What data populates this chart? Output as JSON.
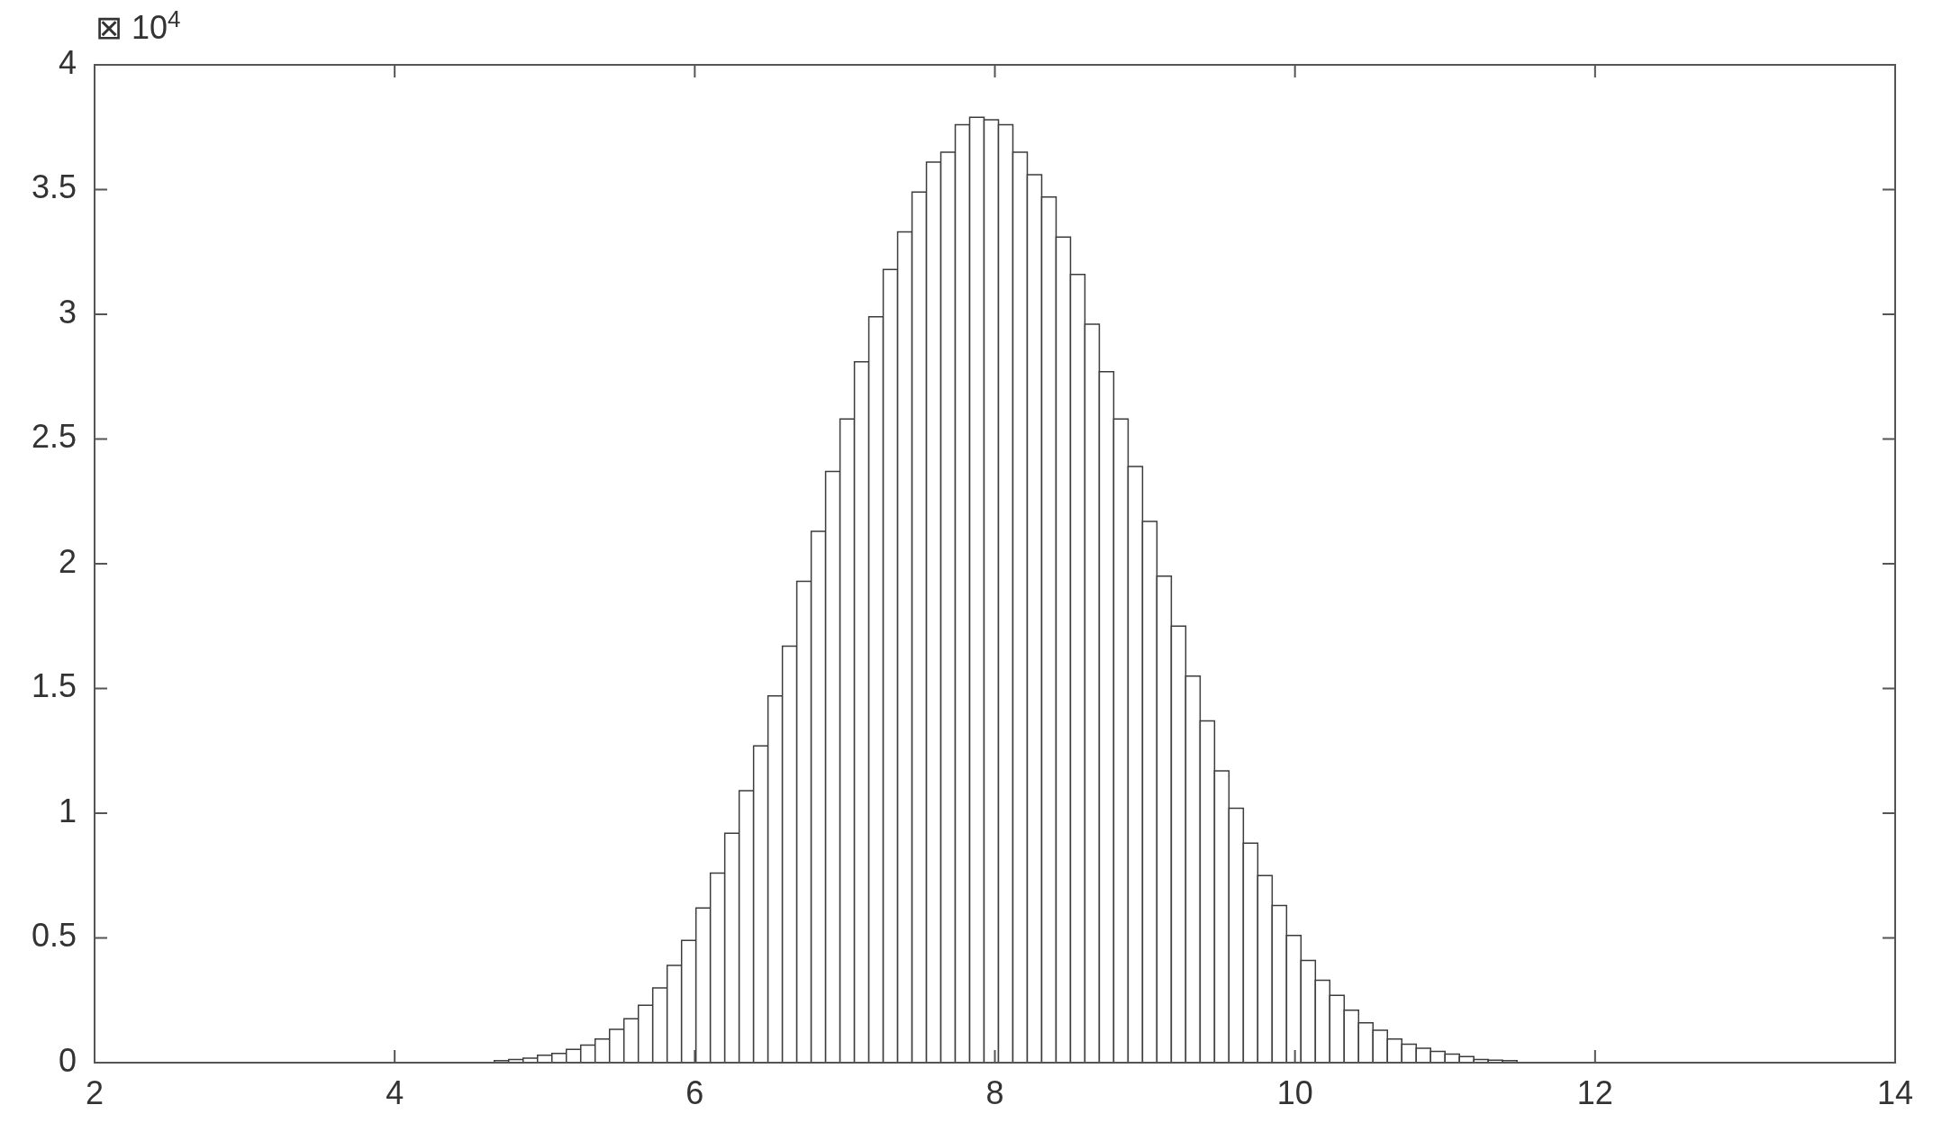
{
  "chart_data": {
    "type": "histogram",
    "bins": [
      4.376,
      4.472,
      4.568,
      4.664,
      4.76,
      4.856,
      4.952,
      5.048,
      5.144,
      5.24,
      5.336,
      5.432,
      5.528,
      5.624,
      5.72,
      5.816,
      5.912,
      6.008,
      6.104,
      6.2,
      6.296,
      6.392,
      6.488,
      6.584,
      6.68,
      6.776,
      6.872,
      6.968,
      7.064,
      7.16,
      7.256,
      7.352,
      7.448,
      7.544,
      7.64,
      7.736,
      7.832,
      7.928,
      8.024,
      8.12,
      8.216,
      8.312,
      8.408,
      8.504,
      8.6,
      8.696,
      8.792,
      8.888,
      8.984,
      9.08,
      9.176,
      9.272,
      9.368,
      9.464,
      9.56,
      9.656,
      9.752,
      9.848,
      9.944,
      10.04,
      10.136,
      10.232,
      10.328,
      10.424,
      10.52,
      10.616,
      10.712,
      10.808,
      10.904,
      11.0,
      11.096,
      11.192,
      11.288,
      11.384,
      11.48,
      11.576,
      11.672,
      11.768
    ],
    "values": [
      0.001,
      null,
      null,
      0.008,
      0.013,
      0.018,
      0.03,
      0.037,
      0.053,
      0.07,
      0.095,
      0.134,
      0.176,
      0.23,
      0.3,
      0.39,
      0.49,
      0.62,
      0.76,
      0.92,
      1.09,
      1.27,
      1.47,
      1.67,
      1.93,
      2.13,
      2.37,
      2.58,
      2.81,
      2.99,
      3.18,
      3.33,
      3.49,
      3.61,
      3.65,
      3.76,
      3.79,
      3.78,
      3.76,
      3.65,
      3.56,
      3.47,
      3.31,
      3.16,
      2.96,
      2.77,
      2.58,
      2.39,
      2.17,
      1.95,
      1.75,
      1.55,
      1.37,
      1.17,
      1.02,
      0.88,
      0.75,
      0.63,
      0.51,
      0.41,
      0.33,
      0.27,
      0.21,
      0.16,
      0.13,
      0.095,
      0.074,
      0.058,
      0.045,
      0.034,
      0.024,
      0.013,
      0.01,
      0.008,
      null,
      null,
      0.001
    ],
    "color": "#3c3c3c",
    "xlim": [
      2,
      14
    ],
    "xticks": [
      2,
      4,
      6,
      8,
      10,
      12,
      14
    ],
    "ylim": [
      0,
      4
    ],
    "yticks": [
      0,
      0.5,
      1,
      1.5,
      2,
      2.5,
      3,
      3.5,
      4
    ],
    "annotations": [
      "⊠ 10$^{4}$"
    ]
  }
}
